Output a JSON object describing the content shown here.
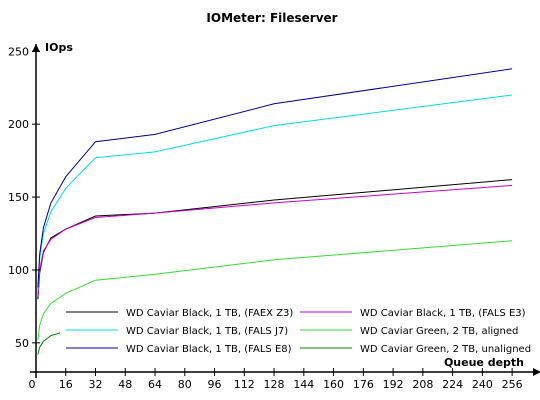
{
  "chart_data": {
    "type": "line",
    "title": "IOMeter: Fileserver",
    "xlabel": "Queue depth",
    "ylabel": "IOps",
    "xlim": [
      0,
      264
    ],
    "ylim": [
      30,
      255
    ],
    "x_ticks": [
      0,
      16,
      32,
      48,
      64,
      80,
      96,
      112,
      128,
      144,
      160,
      176,
      192,
      208,
      224,
      240,
      256
    ],
    "y_ticks": [
      50,
      100,
      150,
      200,
      250
    ],
    "grid": false,
    "legend_position": "bottom-inside",
    "series": [
      {
        "name": "WD Caviar Black, 1 TB, (FAEX Z3)",
        "color": "#000000",
        "x": [
          1,
          2,
          4,
          8,
          16,
          32,
          64,
          128,
          256
        ],
        "y": [
          80,
          98,
          112,
          122,
          128,
          137,
          139,
          148,
          162
        ]
      },
      {
        "name": "WD Caviar Black, 1 TB, (FALS E3)",
        "color": "#cc00cc",
        "x": [
          1,
          2,
          4,
          8,
          16,
          32,
          64,
          128,
          256
        ],
        "y": [
          82,
          100,
          113,
          121,
          128,
          136,
          139,
          146,
          158
        ]
      },
      {
        "name": "WD Caviar Black, 1 TB, (FALS J7)",
        "color": "#00e0e0",
        "x": [
          1,
          2,
          4,
          8,
          16,
          32,
          64,
          128,
          256
        ],
        "y": [
          86,
          108,
          125,
          140,
          156,
          177,
          181,
          199,
          220
        ]
      },
      {
        "name": "WD Caviar Green, 2 TB, aligned",
        "color": "#33dd33",
        "x": [
          1,
          2,
          4,
          8,
          16,
          32,
          64,
          128,
          256
        ],
        "y": [
          52,
          62,
          70,
          77,
          84,
          93,
          97,
          107,
          120
        ]
      },
      {
        "name": "WD Caviar Black, 1 TB, (FALS E8)",
        "color": "#000099",
        "x": [
          1,
          2,
          4,
          8,
          16,
          32,
          64,
          128,
          256
        ],
        "y": [
          88,
          111,
          129,
          146,
          164,
          188,
          193,
          214,
          238
        ]
      },
      {
        "name": "WD Caviar Green, 2 TB, unaligned",
        "color": "#008800",
        "x": [
          1,
          2,
          4,
          8,
          16,
          32,
          64,
          128,
          256
        ],
        "y": [
          42,
          47,
          51,
          55,
          58,
          61,
          63,
          67,
          73
        ]
      }
    ]
  }
}
